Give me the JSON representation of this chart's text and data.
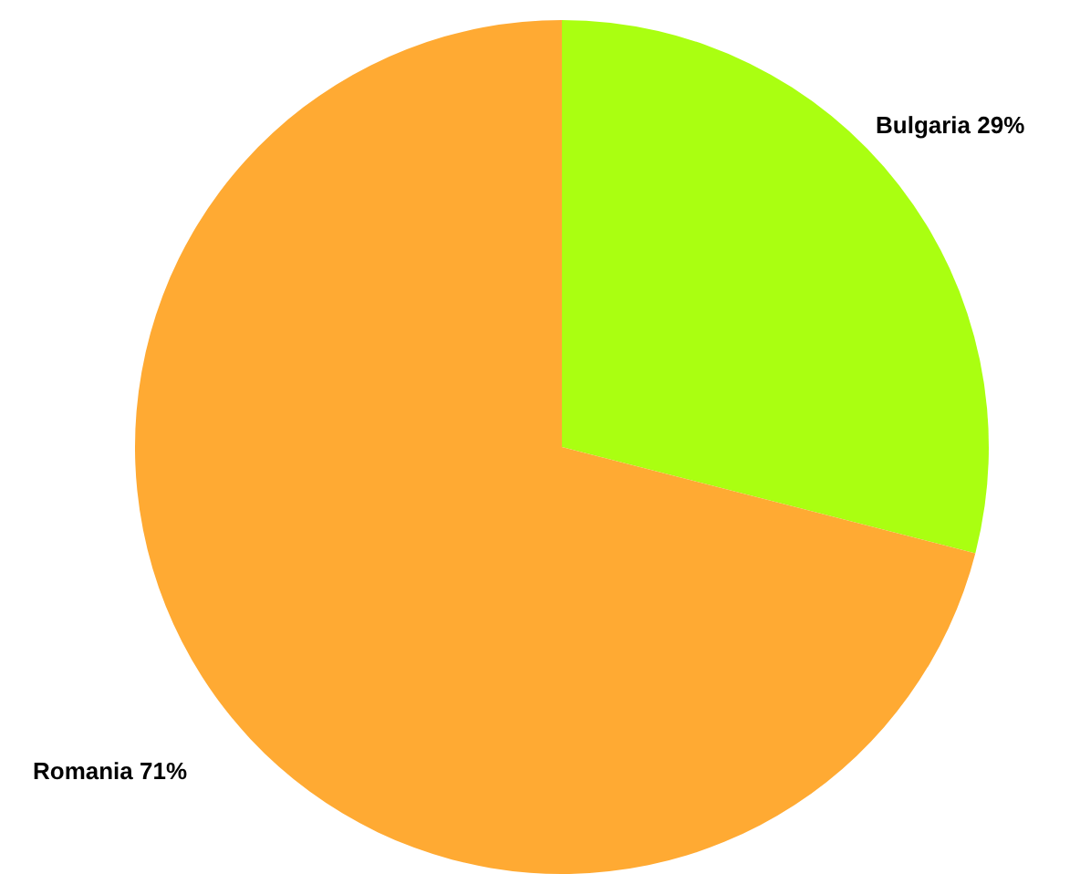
{
  "chart_data": {
    "type": "pie",
    "categories": [
      "Bulgaria",
      "Romania"
    ],
    "values": [
      29,
      71
    ],
    "colors": [
      "#aaff11",
      "#ffaa33"
    ],
    "value_labels": [
      "29%",
      "71%"
    ]
  }
}
